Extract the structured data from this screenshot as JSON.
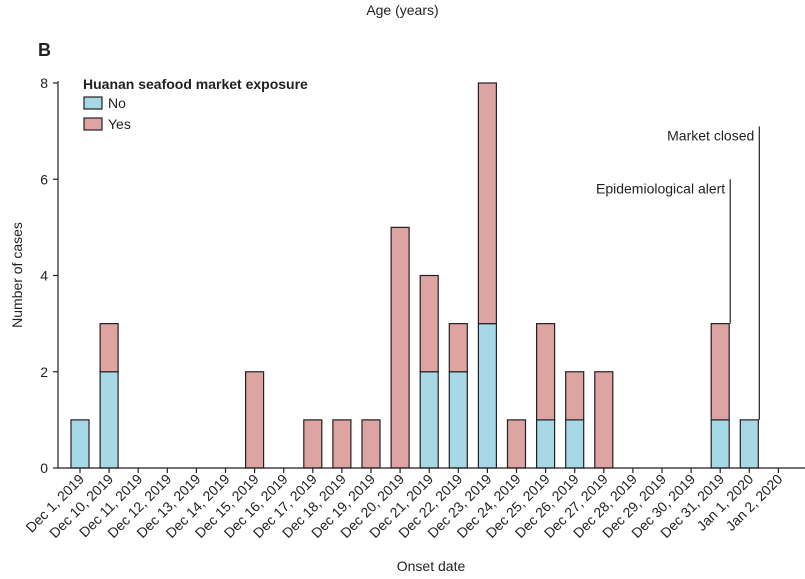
{
  "header": {
    "top_label": "Age (years)",
    "panel_letter": "B"
  },
  "chart_data": {
    "type": "bar",
    "stacked": true,
    "xlabel": "Onset date",
    "ylabel": "Number of cases",
    "ylim": [
      0,
      8
    ],
    "yticks": [
      0,
      2,
      4,
      6,
      8
    ],
    "grid": false,
    "legend_title": "Huanan seafood market exposure",
    "legend_position": "top-left",
    "categories": [
      "Dec 1, 2019",
      "Dec 10, 2019",
      "Dec 11, 2019",
      "Dec 12, 2019",
      "Dec 13, 2019",
      "Dec 14, 2019",
      "Dec 15, 2019",
      "Dec 16, 2019",
      "Dec 17, 2019",
      "Dec 18, 2019",
      "Dec 19, 2019",
      "Dec 20, 2019",
      "Dec 21, 2019",
      "Dec 22, 2019",
      "Dec 23, 2019",
      "Dec 24, 2019",
      "Dec 25, 2019",
      "Dec 26, 2019",
      "Dec 27, 2019",
      "Dec 28, 2019",
      "Dec 29, 2019",
      "Dec 30, 2019",
      "Dec 31, 2019",
      "Jan 1, 2020",
      "Jan 2, 2020"
    ],
    "series": [
      {
        "name": "No",
        "color": "#a6d8e6",
        "values": [
          1,
          2,
          0,
          0,
          0,
          0,
          0,
          0,
          0,
          0,
          0,
          0,
          2,
          2,
          3,
          0,
          1,
          1,
          0,
          0,
          0,
          0,
          1,
          1,
          0
        ]
      },
      {
        "name": "Yes",
        "color": "#dea4a2",
        "values": [
          0,
          1,
          0,
          0,
          0,
          0,
          2,
          0,
          1,
          1,
          1,
          5,
          2,
          1,
          5,
          1,
          2,
          1,
          2,
          0,
          0,
          0,
          2,
          0,
          0
        ]
      }
    ],
    "annotations": [
      {
        "text": "Epidemiological alert",
        "category": "Dec 31, 2019",
        "value": 6
      },
      {
        "text": "Market closed",
        "category": "Jan 1, 2020",
        "value": 7.1
      }
    ]
  }
}
